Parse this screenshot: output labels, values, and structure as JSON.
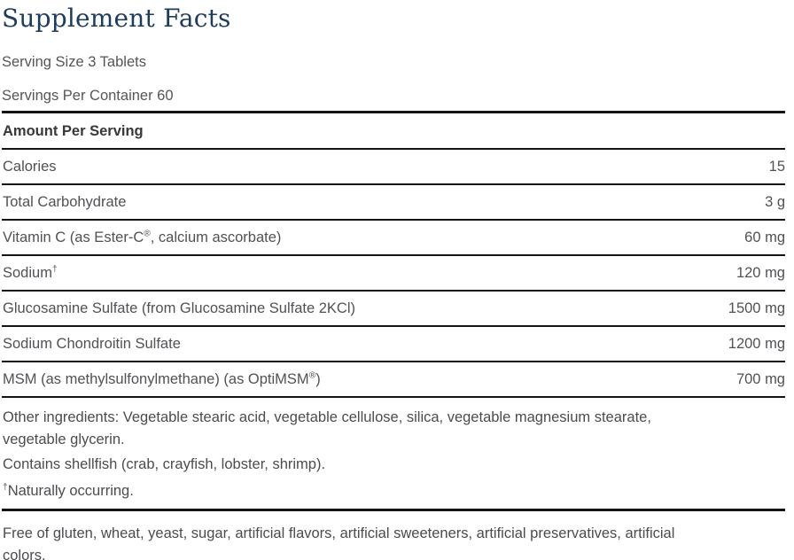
{
  "title": "Supplement Facts",
  "serving": {
    "size": "Serving Size 3 Tablets",
    "per_container": "Servings Per Container 60"
  },
  "table": {
    "header": "Amount Per Serving",
    "rows": [
      {
        "label": "Calories",
        "amount": "15"
      },
      {
        "label": "Total Carbohydrate",
        "amount": "3 g"
      },
      {
        "label": "Vitamin C (as Ester-C®, calcium ascorbate)",
        "amount": "60 mg"
      },
      {
        "label": "Sodium†",
        "amount": "120 mg"
      },
      {
        "label": "Glucosamine Sulfate (from Glucosamine Sulfate 2KCl)",
        "amount": "1500 mg"
      },
      {
        "label": "Sodium Chondroitin Sulfate",
        "amount": "1200 mg"
      },
      {
        "label": "MSM (as methylsulfonylmethane) (as OptiMSM®)",
        "amount": "700 mg"
      }
    ]
  },
  "notes": {
    "other_ingredients_line1": "Other ingredients: Vegetable stearic acid, vegetable cellulose, silica, vegetable magnesium stearate,",
    "other_ingredients_line2": "vegetable glycerin.",
    "contains": "Contains shellfish (crab, crayfish, lobster, shrimp).",
    "naturally_occurring": "†Naturally occurring."
  },
  "footer": {
    "line1": "Free of gluten, wheat, yeast, sugar, artificial flavors, artificial sweeteners, artificial preservatives, artificial",
    "line2": "colors."
  },
  "colors": {
    "title": "#1e3c5c",
    "body_text": "#515156",
    "header_text": "#383838",
    "rule": "#131313",
    "background": "#ffffff"
  }
}
